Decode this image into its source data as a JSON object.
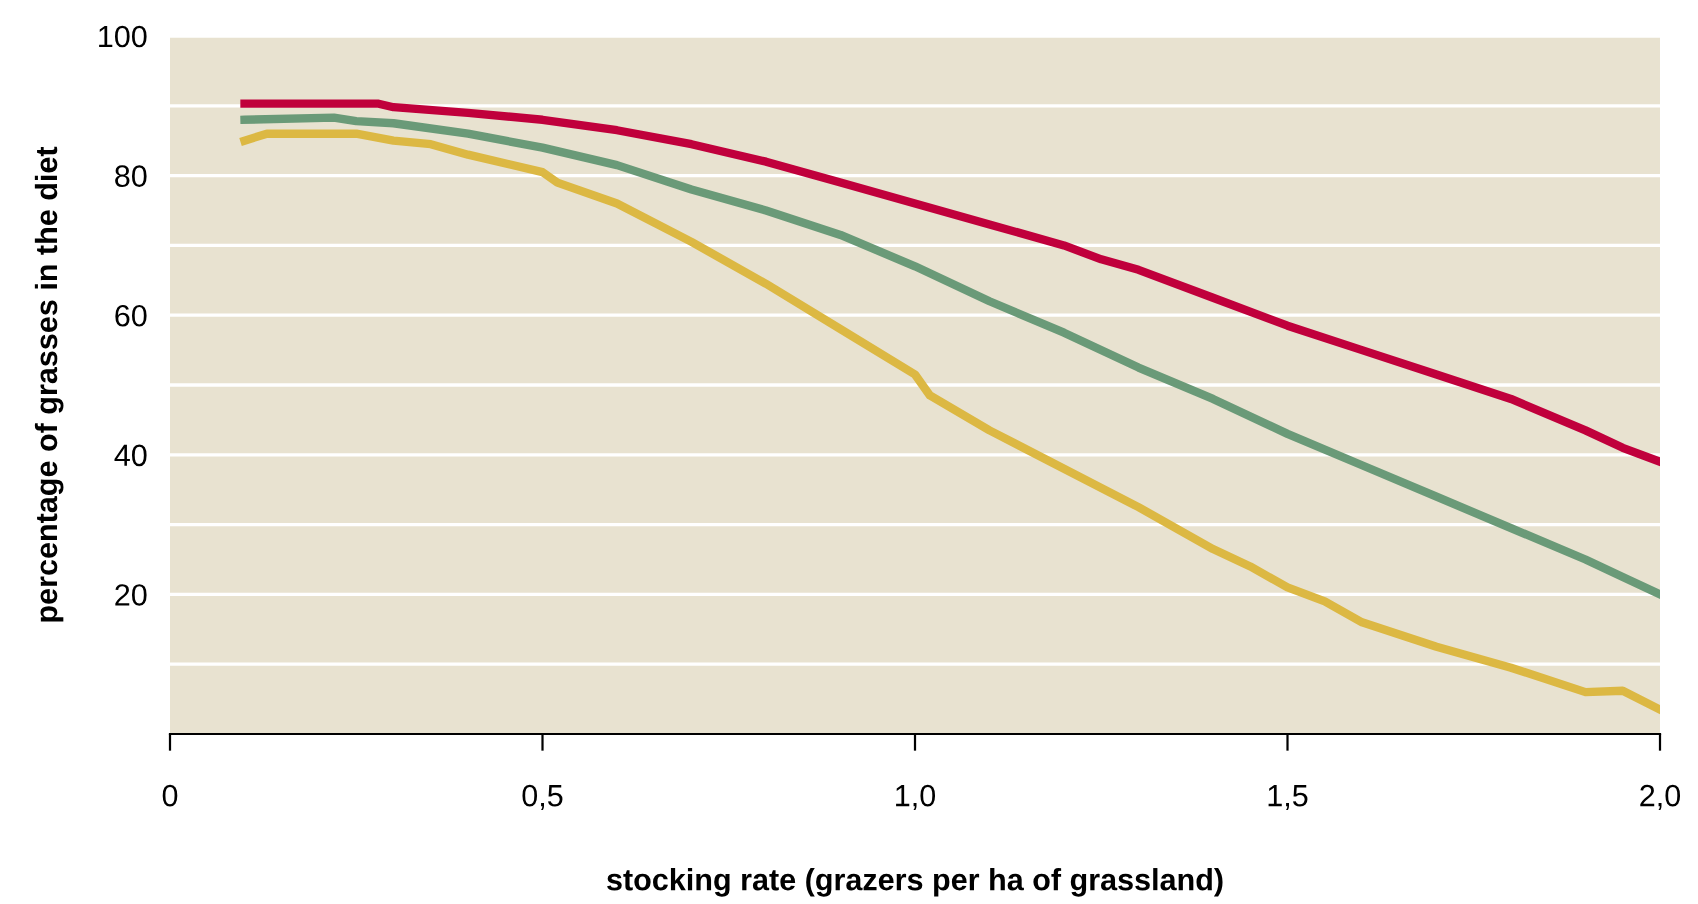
{
  "chart_data": {
    "type": "line",
    "xlabel": "stocking rate (grazers per ha of grassland)",
    "ylabel": "percentage of grasses in the diet",
    "xlim": [
      0,
      2
    ],
    "ylim": [
      0,
      100
    ],
    "xticks": [
      0,
      {
        "value": 0.5,
        "label": "0,5"
      },
      {
        "value": 1.0,
        "label": "1,0"
      },
      {
        "value": 1.5,
        "label": "1,5"
      },
      {
        "value": 2.0,
        "label": "2,0"
      }
    ],
    "yticks": [
      {
        "value": 10,
        "label": null
      },
      20,
      {
        "value": 30,
        "label": null
      },
      40,
      {
        "value": 50,
        "label": null
      },
      60,
      {
        "value": 70,
        "label": null
      },
      80,
      {
        "value": 90,
        "label": null
      },
      100
    ],
    "grid": "y",
    "legend": false,
    "marker": "none",
    "line_style": "solid",
    "series": [
      {
        "color": "#c0003c",
        "x": [
          0.1,
          0.28,
          0.3,
          0.4,
          0.5,
          0.6,
          0.7,
          0.8,
          0.9,
          1.0,
          1.1,
          1.2,
          1.25,
          1.3,
          1.4,
          1.5,
          1.6,
          1.7,
          1.8,
          1.9,
          1.95,
          2.0
        ],
        "values": [
          90.3,
          90.3,
          89.8,
          89,
          88,
          86.5,
          84.5,
          82,
          79,
          76,
          73,
          70,
          68,
          66.5,
          62.5,
          58.5,
          55,
          51.5,
          48,
          43.5,
          41,
          39
        ]
      },
      {
        "color": "#6a9a78",
        "x": [
          0.1,
          0.22,
          0.25,
          0.3,
          0.4,
          0.5,
          0.6,
          0.7,
          0.8,
          0.9,
          1.0,
          1.1,
          1.2,
          1.3,
          1.4,
          1.5,
          1.6,
          1.7,
          1.8,
          1.9,
          1.95,
          2.0
        ],
        "values": [
          88,
          88.3,
          87.8,
          87.5,
          86,
          84,
          81.5,
          78,
          75,
          71.5,
          67,
          62,
          57.5,
          52.5,
          48,
          43,
          38.5,
          34,
          29.5,
          25,
          22.5,
          20
        ]
      },
      {
        "color": "#dcb843",
        "x": [
          0.1,
          0.13,
          0.25,
          0.3,
          0.35,
          0.4,
          0.5,
          0.52,
          0.6,
          0.7,
          0.8,
          0.9,
          1.0,
          1.02,
          1.1,
          1.2,
          1.3,
          1.4,
          1.45,
          1.5,
          1.55,
          1.6,
          1.7,
          1.8,
          1.9,
          1.95,
          2.0
        ],
        "values": [
          85,
          86,
          86,
          85,
          84.5,
          83,
          80.5,
          79,
          76,
          70.5,
          64.5,
          58,
          51.5,
          48.5,
          43.5,
          38,
          32.5,
          26.5,
          24,
          21,
          19,
          16,
          12.5,
          9.5,
          6,
          6.2,
          3.5
        ]
      }
    ]
  }
}
